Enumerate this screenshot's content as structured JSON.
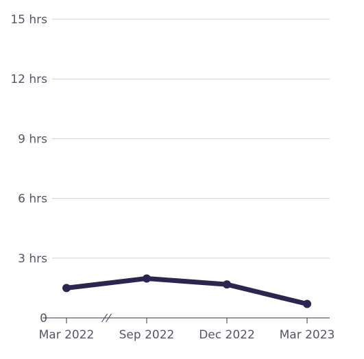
{
  "chart_data": {
    "type": "line",
    "title": "",
    "xlabel": "",
    "ylabel": "",
    "x": [
      "Mar 2022",
      "Sep 2022",
      "Dec 2022",
      "Mar 2023"
    ],
    "series": [
      {
        "values": [
          1.5,
          1.98,
          1.68,
          0.7
        ]
      }
    ],
    "ylim": [
      0,
      15
    ],
    "y_ticks": [
      0,
      3,
      6,
      9,
      12,
      15
    ],
    "y_tick_labels": [
      "0",
      "3 hrs",
      "6 hrs",
      "9 hrs",
      "12 hrs",
      "15 hrs"
    ],
    "x_tick_labels": [
      "Mar 2022",
      "Sep 2022",
      "Dec 2022",
      "Mar 2023"
    ],
    "grid": true,
    "axis_break_between": [
      "Mar 2022",
      "Sep 2022"
    ],
    "colors": {
      "line": "#2a2650",
      "grid": "#d0d0d6",
      "text": "#555566"
    }
  }
}
